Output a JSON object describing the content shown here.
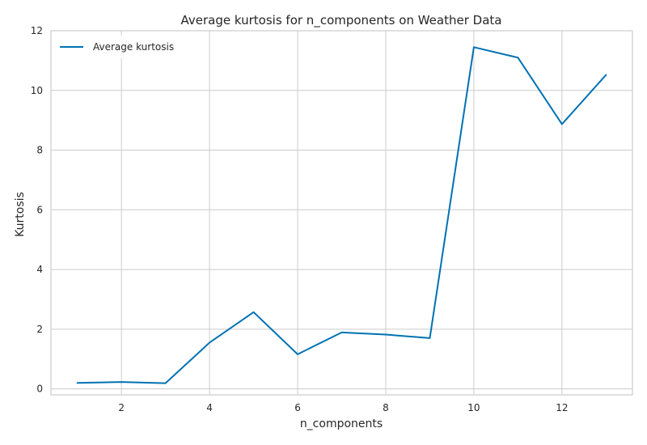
{
  "chart_data": {
    "type": "line",
    "title": "Average kurtosis for n_components on Weather Data",
    "xlabel": "n_components",
    "ylabel": "Kurtosis",
    "x": [
      1,
      2,
      3,
      4,
      5,
      6,
      7,
      8,
      9,
      10,
      11,
      12,
      13
    ],
    "series": [
      {
        "name": "Average kurtosis",
        "color": "#0072b2",
        "values": [
          0.2,
          0.23,
          0.19,
          1.55,
          2.57,
          1.16,
          1.89,
          1.82,
          1.7,
          11.45,
          11.1,
          8.87,
          10.52
        ]
      }
    ],
    "xlim": [
      0.4,
      13.6
    ],
    "ylim": [
      -0.2,
      12.0
    ],
    "xticks": [
      2,
      4,
      6,
      8,
      10,
      12
    ],
    "yticks": [
      0,
      2,
      4,
      6,
      8,
      10,
      12
    ],
    "grid": true,
    "legend_position": "upper-left"
  }
}
